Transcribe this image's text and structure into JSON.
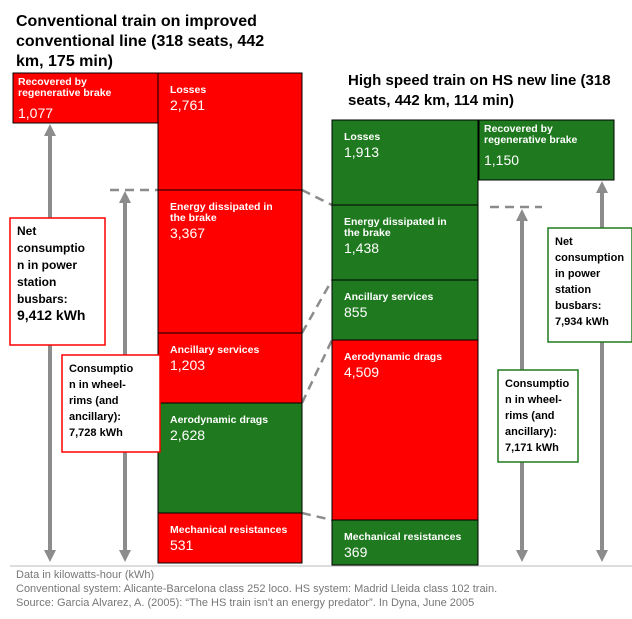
{
  "left": {
    "title": [
      "Conventional train on improved",
      "conventional line (318 seats, 442",
      "km, 175 min)"
    ],
    "recovered": {
      "label": [
        "Recovered by",
        "regenerative brake"
      ],
      "value": "1,077"
    },
    "blocks": [
      {
        "label": [
          "Losses"
        ],
        "value": "2,761"
      },
      {
        "label": [
          "Energy dissipated in",
          "the brake"
        ],
        "value": "3,367"
      },
      {
        "label": [
          "Ancillary services"
        ],
        "value": "1,203"
      },
      {
        "label": [
          "Aerodynamic drags"
        ],
        "value": "2,628"
      },
      {
        "label": [
          "Mechanical resistances"
        ],
        "value": "531"
      }
    ],
    "net": {
      "lines": [
        "Net",
        "consumptio",
        "n in power",
        "station",
        "busbars:"
      ],
      "value": "9,412 kWh"
    },
    "wheel": {
      "lines": [
        "Consumptio",
        "n in wheel-",
        "rims (and",
        "ancillary):"
      ],
      "value": "7,728 kWh"
    }
  },
  "right": {
    "title": [
      "High speed train on HS new line (318",
      "seats, 442 km, 114 min)"
    ],
    "recovered": {
      "label": [
        "Recovered by",
        "regenerative brake"
      ],
      "value": "1,150"
    },
    "blocks": [
      {
        "label": [
          "Losses"
        ],
        "value": "1,913"
      },
      {
        "label": [
          "Energy dissipated in",
          "the brake"
        ],
        "value": "1,438"
      },
      {
        "label": [
          "Ancillary services"
        ],
        "value": "855"
      },
      {
        "label": [
          "Aerodynamic drags"
        ],
        "value": "4,509"
      },
      {
        "label": [
          "Mechanical resistances"
        ],
        "value": "369"
      }
    ],
    "net": {
      "lines": [
        "Net",
        "consumption",
        "in power",
        "station",
        "busbars:"
      ],
      "value": "7,934 kWh"
    },
    "wheel": {
      "lines": [
        "Consumptio",
        "n in wheel-",
        "rims (and",
        "ancillary):"
      ],
      "value": "7,171 kWh"
    }
  },
  "footer": [
    "Data in kilowatts-hour (kWh)",
    "Conventional system: Alicante-Barcelona class 252 loco. HS system: Madrid Lleida class 102 train.",
    "Source: Garcia Alvarez, A. (2005): “The HS train isn't an energy predator”. In Dyna, June 2005"
  ]
}
